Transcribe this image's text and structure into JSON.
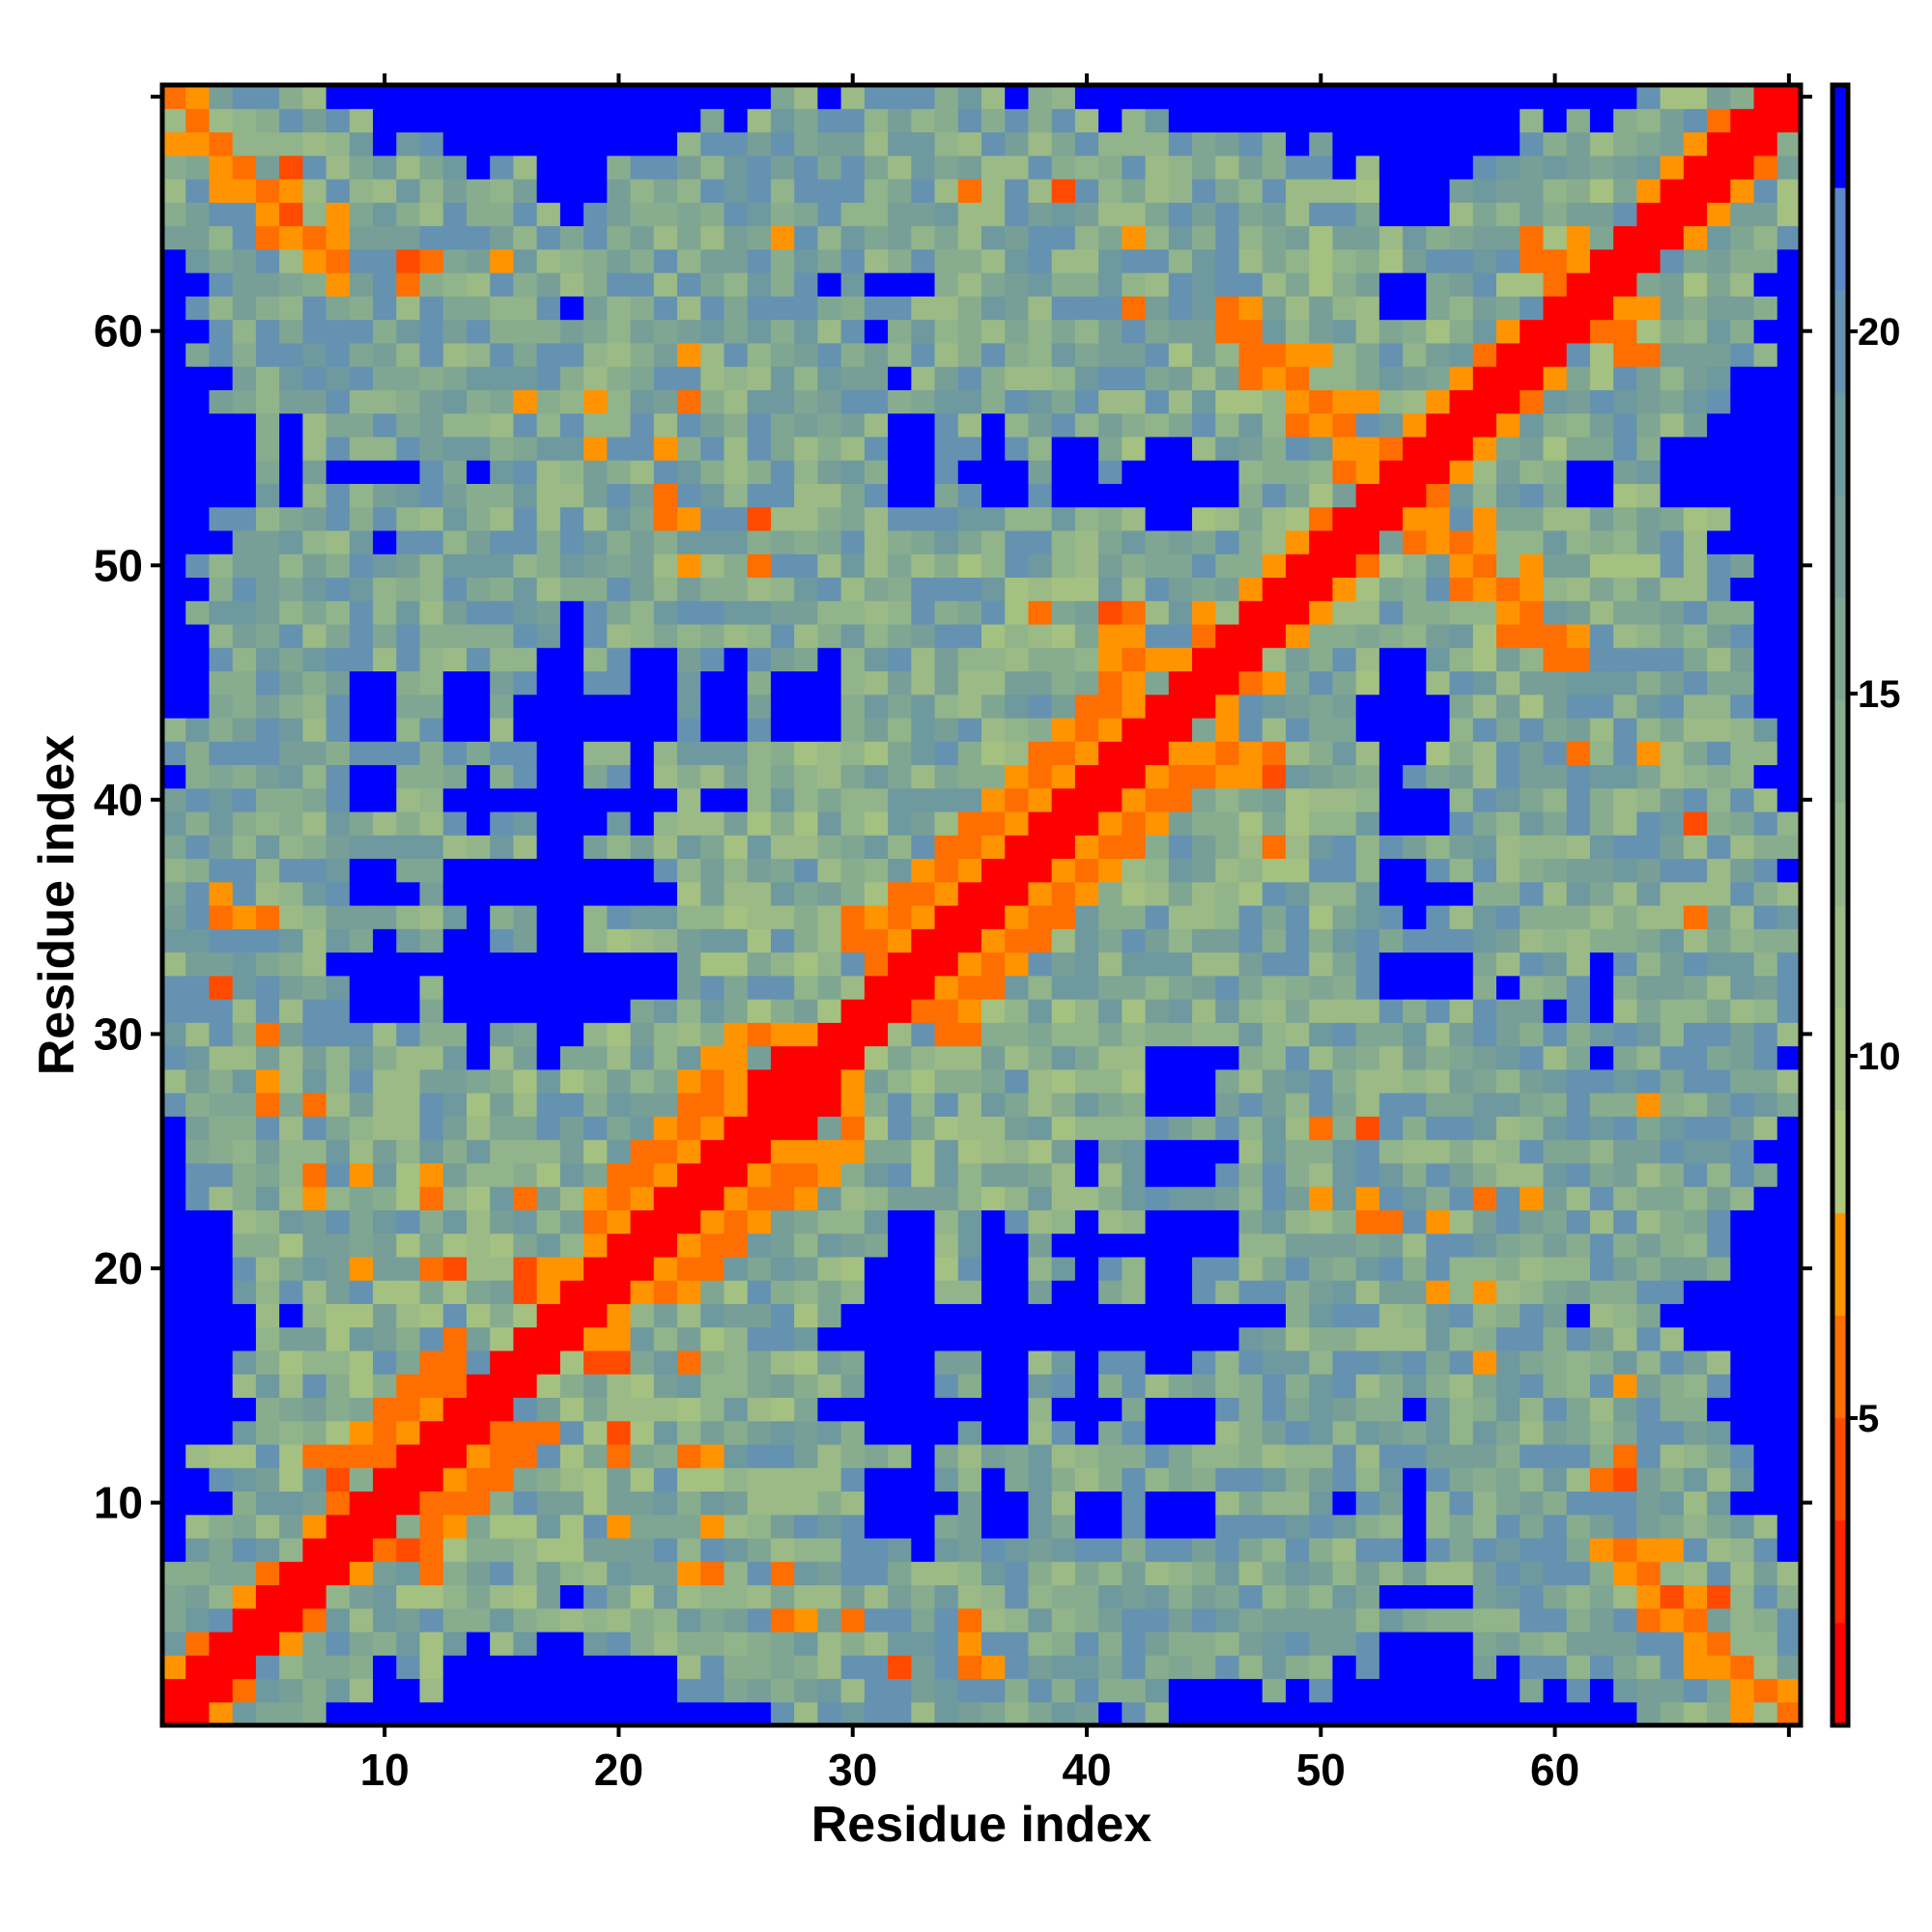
{
  "chart_data": {
    "type": "heatmap",
    "title": "",
    "xlabel": "Residue index",
    "ylabel": "Residue index",
    "n_residues": 70,
    "xlim": [
      1,
      70
    ],
    "ylim": [
      1,
      70
    ],
    "x_ticks": [
      10,
      20,
      30,
      40,
      50,
      60
    ],
    "y_ticks": [
      10,
      20,
      30,
      40,
      50,
      60
    ],
    "x_tick_marks": [
      10,
      20,
      30,
      40,
      50,
      60,
      70
    ],
    "y_tick_marks": [
      10,
      20,
      30,
      40,
      50,
      60,
      70
    ],
    "symmetric": true,
    "value_encoding": "cell values are colorbar bin indices (0 = closest, 15 = farthest)",
    "colorbar": {
      "min": 0.76,
      "max": 23.4,
      "ticks": [
        5,
        10,
        15,
        20
      ],
      "bin_colors": [
        "#FF0000",
        "#FF2500",
        "#FF4A00",
        "#FF6E00",
        "#FF9400",
        "#AFC97C",
        "#A4C181",
        "#9BBA86",
        "#92B48A",
        "#88AD8E",
        "#7FA692",
        "#779F98",
        "#6E999F",
        "#6592B1",
        "#5A8AC4",
        "#0000FF"
      ]
    },
    "diagonal_band": {
      "max_offset": 1,
      "bin": 0
    },
    "background": {
      "seed": 7,
      "bin_range": [
        6,
        13
      ]
    },
    "far_bin": 15,
    "far_runs_upper": [
      [
        70,
        8,
        26
      ],
      [
        70,
        29,
        29
      ],
      [
        70,
        37,
        37
      ],
      [
        70,
        40,
        63
      ],
      [
        69,
        10,
        23
      ],
      [
        69,
        25,
        25
      ],
      [
        69,
        41,
        41
      ],
      [
        69,
        44,
        58
      ],
      [
        69,
        60,
        60
      ],
      [
        69,
        62,
        62
      ],
      [
        68,
        10,
        10
      ],
      [
        68,
        13,
        22
      ],
      [
        68,
        49,
        49
      ],
      [
        68,
        51,
        58
      ],
      [
        67,
        14,
        14
      ],
      [
        67,
        17,
        19
      ],
      [
        67,
        51,
        51
      ],
      [
        67,
        53,
        56
      ],
      [
        66,
        17,
        19
      ],
      [
        66,
        53,
        55
      ],
      [
        65,
        18,
        18
      ],
      [
        65,
        53,
        55
      ],
      [
        63,
        1,
        1
      ],
      [
        62,
        1,
        2
      ],
      [
        62,
        29,
        29
      ],
      [
        62,
        31,
        33
      ],
      [
        62,
        53,
        54
      ],
      [
        61,
        1,
        1
      ],
      [
        61,
        18,
        18
      ],
      [
        61,
        53,
        54
      ],
      [
        60,
        1,
        2
      ],
      [
        60,
        31,
        31
      ],
      [
        59,
        1,
        1
      ],
      [
        58,
        1,
        3
      ],
      [
        58,
        32,
        32
      ],
      [
        57,
        1,
        2
      ],
      [
        56,
        1,
        4
      ],
      [
        56,
        6,
        6
      ],
      [
        56,
        32,
        33
      ],
      [
        56,
        36,
        36
      ],
      [
        55,
        1,
        4
      ],
      [
        55,
        6,
        6
      ],
      [
        55,
        32,
        33
      ],
      [
        55,
        36,
        36
      ],
      [
        55,
        39,
        40
      ],
      [
        55,
        43,
        44
      ],
      [
        54,
        1,
        4
      ],
      [
        54,
        6,
        6
      ],
      [
        54,
        8,
        11
      ],
      [
        54,
        14,
        14
      ],
      [
        54,
        32,
        33
      ],
      [
        54,
        35,
        37
      ],
      [
        54,
        39,
        40
      ],
      [
        54,
        42,
        46
      ],
      [
        53,
        1,
        4
      ],
      [
        53,
        6,
        6
      ],
      [
        53,
        32,
        33
      ],
      [
        53,
        36,
        37
      ],
      [
        53,
        39,
        46
      ],
      [
        52,
        1,
        2
      ],
      [
        52,
        43,
        44
      ],
      [
        51,
        1,
        3
      ],
      [
        51,
        10,
        10
      ],
      [
        50,
        1,
        1
      ],
      [
        49,
        1,
        2
      ],
      [
        48,
        1,
        1
      ],
      [
        48,
        18,
        18
      ],
      [
        47,
        1,
        2
      ],
      [
        47,
        18,
        18
      ],
      [
        46,
        1,
        2
      ],
      [
        46,
        17,
        18
      ],
      [
        46,
        21,
        22
      ],
      [
        46,
        25,
        25
      ],
      [
        46,
        29,
        29
      ],
      [
        45,
        1,
        2
      ],
      [
        45,
        9,
        10
      ],
      [
        45,
        13,
        14
      ],
      [
        45,
        17,
        18
      ],
      [
        45,
        21,
        22
      ],
      [
        45,
        24,
        25
      ],
      [
        45,
        27,
        29
      ],
      [
        44,
        1,
        2
      ],
      [
        44,
        9,
        10
      ],
      [
        44,
        13,
        14
      ],
      [
        44,
        16,
        22
      ],
      [
        44,
        24,
        25
      ],
      [
        44,
        27,
        29
      ],
      [
        43,
        9,
        10
      ],
      [
        43,
        13,
        14
      ],
      [
        43,
        16,
        22
      ],
      [
        43,
        24,
        25
      ],
      [
        43,
        27,
        29
      ],
      [
        42,
        17,
        18
      ],
      [
        42,
        21,
        21
      ],
      [
        41,
        1,
        1
      ],
      [
        41,
        9,
        10
      ],
      [
        41,
        14,
        14
      ],
      [
        41,
        17,
        18
      ],
      [
        41,
        21,
        21
      ],
      [
        40,
        9,
        10
      ],
      [
        40,
        13,
        22
      ],
      [
        40,
        24,
        25
      ],
      [
        39,
        14,
        14
      ],
      [
        39,
        17,
        19
      ],
      [
        39,
        21,
        21
      ],
      [
        38,
        17,
        18
      ],
      [
        37,
        9,
        10
      ],
      [
        37,
        13,
        21
      ],
      [
        36,
        9,
        11
      ],
      [
        36,
        13,
        22
      ],
      [
        35,
        14,
        14
      ],
      [
        35,
        17,
        18
      ],
      [
        34,
        10,
        10
      ],
      [
        34,
        13,
        14
      ],
      [
        34,
        17,
        18
      ],
      [
        33,
        8,
        22
      ],
      [
        32,
        9,
        11
      ],
      [
        32,
        13,
        22
      ],
      [
        31,
        9,
        11
      ],
      [
        31,
        13,
        20
      ],
      [
        30,
        14,
        14
      ],
      [
        30,
        17,
        18
      ],
      [
        29,
        14,
        14
      ],
      [
        29,
        17,
        17
      ],
      [
        26,
        1,
        1
      ],
      [
        25,
        1,
        1
      ],
      [
        24,
        1,
        1
      ],
      [
        23,
        1,
        1
      ],
      [
        22,
        1,
        3
      ],
      [
        21,
        1,
        3
      ],
      [
        20,
        1,
        3
      ],
      [
        19,
        1,
        3
      ],
      [
        18,
        1,
        4
      ],
      [
        18,
        6,
        6
      ],
      [
        17,
        1,
        4
      ],
      [
        16,
        1,
        3
      ],
      [
        15,
        1,
        3
      ],
      [
        14,
        1,
        4
      ],
      [
        13,
        1,
        3
      ],
      [
        12,
        1,
        1
      ],
      [
        11,
        1,
        2
      ],
      [
        10,
        1,
        3
      ],
      [
        9,
        1,
        1
      ],
      [
        8,
        1,
        1
      ]
    ],
    "contacts_upper": [
      [
        1,
        3,
        4
      ],
      [
        2,
        4,
        3
      ],
      [
        4,
        6,
        4
      ],
      [
        5,
        7,
        3
      ],
      [
        7,
        9,
        4
      ],
      [
        8,
        10,
        3
      ],
      [
        8,
        11,
        2
      ],
      [
        7,
        12,
        3
      ],
      [
        8,
        12,
        3
      ],
      [
        9,
        12,
        3
      ],
      [
        10,
        12,
        3
      ],
      [
        9,
        13,
        4
      ],
      [
        10,
        13,
        3
      ],
      [
        11,
        13,
        4
      ],
      [
        10,
        14,
        3
      ],
      [
        11,
        14,
        3
      ],
      [
        12,
        14,
        4
      ],
      [
        11,
        15,
        3
      ],
      [
        12,
        15,
        3
      ],
      [
        13,
        15,
        3
      ],
      [
        12,
        16,
        3
      ],
      [
        13,
        16,
        3
      ],
      [
        13,
        17,
        3
      ],
      [
        16,
        19,
        2
      ],
      [
        17,
        19,
        4
      ],
      [
        9,
        20,
        4
      ],
      [
        12,
        20,
        3
      ],
      [
        13,
        20,
        2
      ],
      [
        16,
        20,
        2
      ],
      [
        17,
        20,
        4
      ],
      [
        18,
        20,
        4
      ],
      [
        19,
        21,
        4
      ],
      [
        19,
        22,
        3
      ],
      [
        20,
        22,
        4
      ],
      [
        7,
        23,
        4
      ],
      [
        12,
        23,
        3
      ],
      [
        16,
        23,
        3
      ],
      [
        19,
        23,
        4
      ],
      [
        20,
        23,
        3
      ],
      [
        21,
        23,
        4
      ],
      [
        7,
        24,
        3
      ],
      [
        9,
        24,
        4
      ],
      [
        12,
        24,
        4
      ],
      [
        20,
        24,
        3
      ],
      [
        21,
        24,
        3
      ],
      [
        22,
        24,
        4
      ],
      [
        21,
        25,
        3
      ],
      [
        22,
        25,
        3
      ],
      [
        23,
        25,
        4
      ],
      [
        22,
        26,
        4
      ],
      [
        23,
        26,
        3
      ],
      [
        24,
        26,
        4
      ],
      [
        5,
        27,
        3
      ],
      [
        7,
        27,
        3
      ],
      [
        23,
        27,
        3
      ],
      [
        24,
        27,
        3
      ],
      [
        25,
        27,
        4
      ],
      [
        5,
        28,
        4
      ],
      [
        23,
        28,
        4
      ],
      [
        24,
        28,
        3
      ],
      [
        25,
        28,
        4
      ],
      [
        26,
        28,
        0
      ],
      [
        24,
        29,
        4
      ],
      [
        25,
        29,
        4
      ],
      [
        27,
        29,
        0
      ],
      [
        5,
        30,
        3
      ],
      [
        25,
        30,
        4
      ],
      [
        26,
        30,
        3
      ],
      [
        27,
        30,
        4
      ],
      [
        28,
        30,
        4
      ],
      [
        3,
        32,
        2
      ],
      [
        31,
        33,
        3
      ],
      [
        30,
        34,
        3
      ],
      [
        31,
        34,
        3
      ],
      [
        32,
        34,
        4
      ],
      [
        3,
        35,
        3
      ],
      [
        4,
        35,
        4
      ],
      [
        5,
        35,
        3
      ],
      [
        30,
        35,
        3
      ],
      [
        31,
        35,
        4
      ],
      [
        32,
        35,
        3
      ],
      [
        33,
        35,
        4
      ],
      [
        3,
        36,
        4
      ],
      [
        32,
        36,
        3
      ],
      [
        33,
        36,
        3
      ],
      [
        34,
        36,
        4
      ],
      [
        33,
        37,
        4
      ],
      [
        34,
        37,
        3
      ],
      [
        35,
        37,
        4
      ],
      [
        34,
        38,
        3
      ],
      [
        35,
        38,
        3
      ],
      [
        36,
        38,
        4
      ],
      [
        35,
        39,
        3
      ],
      [
        36,
        39,
        3
      ],
      [
        37,
        39,
        4
      ],
      [
        36,
        40,
        4
      ],
      [
        37,
        40,
        3
      ],
      [
        38,
        40,
        4
      ],
      [
        37,
        41,
        4
      ],
      [
        38,
        41,
        3
      ],
      [
        39,
        41,
        4
      ],
      [
        38,
        42,
        3
      ],
      [
        39,
        42,
        3
      ],
      [
        40,
        42,
        4
      ],
      [
        39,
        43,
        4
      ],
      [
        40,
        43,
        3
      ],
      [
        41,
        43,
        4
      ],
      [
        40,
        44,
        3
      ],
      [
        41,
        44,
        3
      ],
      [
        42,
        44,
        4
      ],
      [
        41,
        45,
        3
      ],
      [
        42,
        45,
        4
      ],
      [
        41,
        46,
        4
      ],
      [
        42,
        46,
        3
      ],
      [
        43,
        46,
        4
      ],
      [
        44,
        46,
        4
      ],
      [
        41,
        47,
        4
      ],
      [
        42,
        47,
        4
      ],
      [
        45,
        47,
        3
      ],
      [
        38,
        48,
        3
      ],
      [
        41,
        48,
        2
      ],
      [
        42,
        48,
        3
      ],
      [
        45,
        48,
        4
      ],
      [
        47,
        49,
        4
      ],
      [
        48,
        50,
        4
      ],
      [
        23,
        50,
        4
      ],
      [
        26,
        50,
        3
      ],
      [
        49,
        51,
        4
      ],
      [
        22,
        52,
        3
      ],
      [
        23,
        52,
        4
      ],
      [
        26,
        52,
        2
      ],
      [
        50,
        52,
        3
      ],
      [
        22,
        53,
        3
      ],
      [
        51,
        54,
        3
      ],
      [
        52,
        54,
        4
      ],
      [
        19,
        55,
        4
      ],
      [
        22,
        55,
        4
      ],
      [
        51,
        55,
        4
      ],
      [
        52,
        55,
        4
      ],
      [
        53,
        55,
        3
      ],
      [
        49,
        56,
        3
      ],
      [
        50,
        56,
        4
      ],
      [
        51,
        56,
        3
      ],
      [
        54,
        56,
        4
      ],
      [
        16,
        57,
        4
      ],
      [
        19,
        57,
        4
      ],
      [
        23,
        57,
        3
      ],
      [
        49,
        57,
        4
      ],
      [
        50,
        57,
        3
      ],
      [
        51,
        57,
        4
      ],
      [
        52,
        57,
        4
      ],
      [
        55,
        57,
        4
      ],
      [
        47,
        58,
        3
      ],
      [
        48,
        58,
        4
      ],
      [
        49,
        58,
        3
      ],
      [
        56,
        58,
        4
      ],
      [
        23,
        59,
        4
      ],
      [
        47,
        59,
        3
      ],
      [
        48,
        59,
        3
      ],
      [
        49,
        59,
        4
      ],
      [
        50,
        59,
        4
      ],
      [
        57,
        59,
        3
      ],
      [
        46,
        60,
        3
      ],
      [
        47,
        60,
        3
      ],
      [
        58,
        60,
        4
      ],
      [
        42,
        61,
        3
      ],
      [
        46,
        61,
        3
      ],
      [
        47,
        61,
        4
      ],
      [
        8,
        62,
        4
      ],
      [
        11,
        62,
        3
      ],
      [
        60,
        62,
        3
      ],
      [
        7,
        63,
        4
      ],
      [
        8,
        63,
        3
      ],
      [
        11,
        63,
        2
      ],
      [
        12,
        63,
        3
      ],
      [
        15,
        63,
        4
      ],
      [
        59,
        63,
        3
      ],
      [
        60,
        63,
        3
      ],
      [
        61,
        63,
        4
      ],
      [
        5,
        64,
        3
      ],
      [
        6,
        64,
        4
      ],
      [
        7,
        64,
        3
      ],
      [
        8,
        64,
        4
      ],
      [
        27,
        64,
        4
      ],
      [
        42,
        64,
        4
      ],
      [
        59,
        64,
        3
      ],
      [
        61,
        64,
        4
      ],
      [
        5,
        65,
        4
      ],
      [
        6,
        65,
        2
      ],
      [
        8,
        65,
        4
      ],
      [
        3,
        66,
        4
      ],
      [
        4,
        66,
        4
      ],
      [
        5,
        66,
        3
      ],
      [
        6,
        66,
        4
      ],
      [
        35,
        66,
        3
      ],
      [
        39,
        66,
        2
      ],
      [
        64,
        66,
        4
      ],
      [
        3,
        67,
        4
      ],
      [
        4,
        67,
        3
      ],
      [
        6,
        67,
        2
      ],
      [
        65,
        67,
        4
      ],
      [
        1,
        68,
        4
      ],
      [
        2,
        68,
        4
      ],
      [
        3,
        68,
        3
      ],
      [
        66,
        68,
        4
      ],
      [
        2,
        69,
        3
      ],
      [
        67,
        69,
        3
      ],
      [
        1,
        70,
        3
      ],
      [
        2,
        70,
        4
      ]
    ]
  }
}
